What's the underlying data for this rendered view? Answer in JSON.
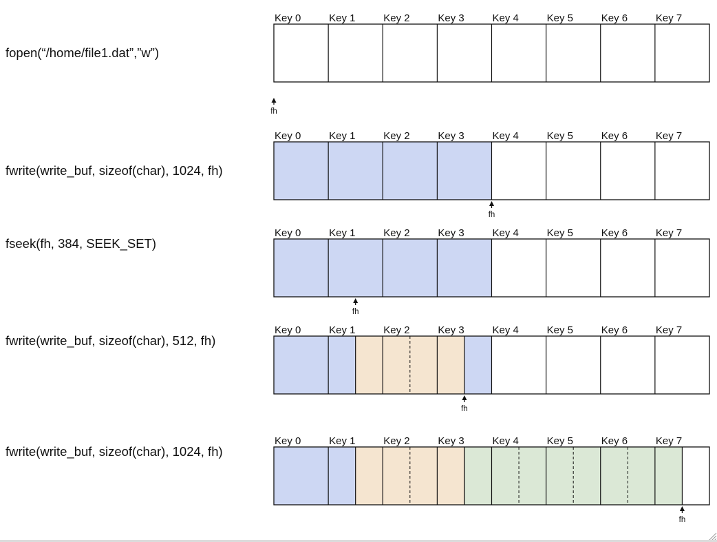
{
  "colors": {
    "blue": "#cdd7f3",
    "orange": "#f5e5d0",
    "green": "#dbe8d6",
    "stroke": "#111111"
  },
  "key_labels": [
    "Key 0",
    "Key 1",
    "Key 2",
    "Key 3",
    "Key 4",
    "Key 5",
    "Key 6",
    "Key 7"
  ],
  "pointer_label": "fh",
  "rows": [
    {
      "statement": "fopen(“/home/file1.dat”,”w”)",
      "fh_offset": 0,
      "fills": []
    },
    {
      "statement": "fwrite(write_buf, sizeof(char), 1024, fh)",
      "fh_offset": 1024,
      "fills": [
        {
          "start": 0,
          "end": 1024,
          "color": "blue",
          "dashed": false
        }
      ]
    },
    {
      "statement": "fseek(fh, 384, SEEK_SET)",
      "fh_offset": 384,
      "fills": [
        {
          "start": 0,
          "end": 1024,
          "color": "blue",
          "dashed": false
        }
      ]
    },
    {
      "statement": "fwrite(write_buf, sizeof(char), 512, fh)",
      "fh_offset": 896,
      "fills": [
        {
          "start": 0,
          "end": 1024,
          "color": "blue",
          "dashed": false
        },
        {
          "start": 384,
          "end": 896,
          "color": "orange",
          "dashed": true
        }
      ]
    },
    {
      "statement": "fwrite(write_buf, sizeof(char), 1024, fh)",
      "fh_offset": 1920,
      "fills": [
        {
          "start": 0,
          "end": 384,
          "color": "blue",
          "dashed": false
        },
        {
          "start": 384,
          "end": 896,
          "color": "orange",
          "dashed": true
        },
        {
          "start": 896,
          "end": 1920,
          "color": "green",
          "dashed": true
        }
      ]
    }
  ]
}
